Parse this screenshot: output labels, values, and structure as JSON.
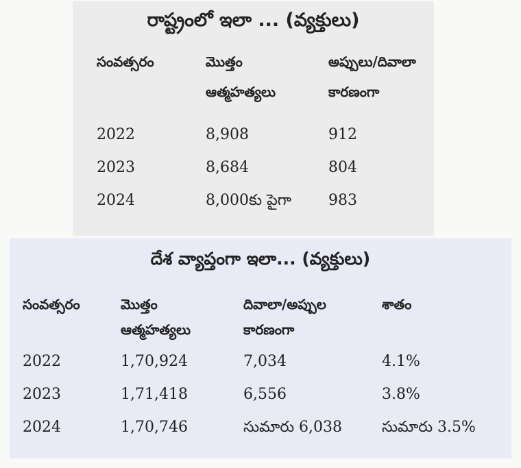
{
  "state_table": {
    "title": "రాష్ట్రంలో ఇలా ... (వ్యక్తులు)",
    "headers": {
      "year": "సంవత్సరం",
      "total_line1": "మొత్తం",
      "total_line2": "ఆత్మహత్యలు",
      "debt_line1": "అప్పులు/దివాలా",
      "debt_line2": "కారణంగా"
    },
    "rows": [
      {
        "year": "2022",
        "total": "8,908",
        "debt": "912"
      },
      {
        "year": "2023",
        "total": "8,684",
        "debt": "804"
      },
      {
        "year": "2024",
        "total": "8,000కు పైగా",
        "debt": "983"
      }
    ]
  },
  "national_table": {
    "title": "దేశ వ్యాప్తంగా ఇలా... (వ్యక్తులు)",
    "headers": {
      "year": "సంవత్సరం",
      "total_line1": "మొత్తం",
      "total_line2": "ఆత్మహత్యలు",
      "debt_line1": "దివాలా/అప్పుల",
      "debt_line2": "కారణంగా",
      "percent": "శాతం"
    },
    "rows": [
      {
        "year": "2022",
        "total": "1,70,924",
        "debt": "7,034",
        "percent": "4.1%"
      },
      {
        "year": "2023",
        "total": "1,71,418",
        "debt": "6,556",
        "percent": "3.8%"
      },
      {
        "year": "2024",
        "total": "1,70,746",
        "debt": "సుమారు 6,038",
        "percent": "సుమారు 3.5%"
      }
    ]
  }
}
